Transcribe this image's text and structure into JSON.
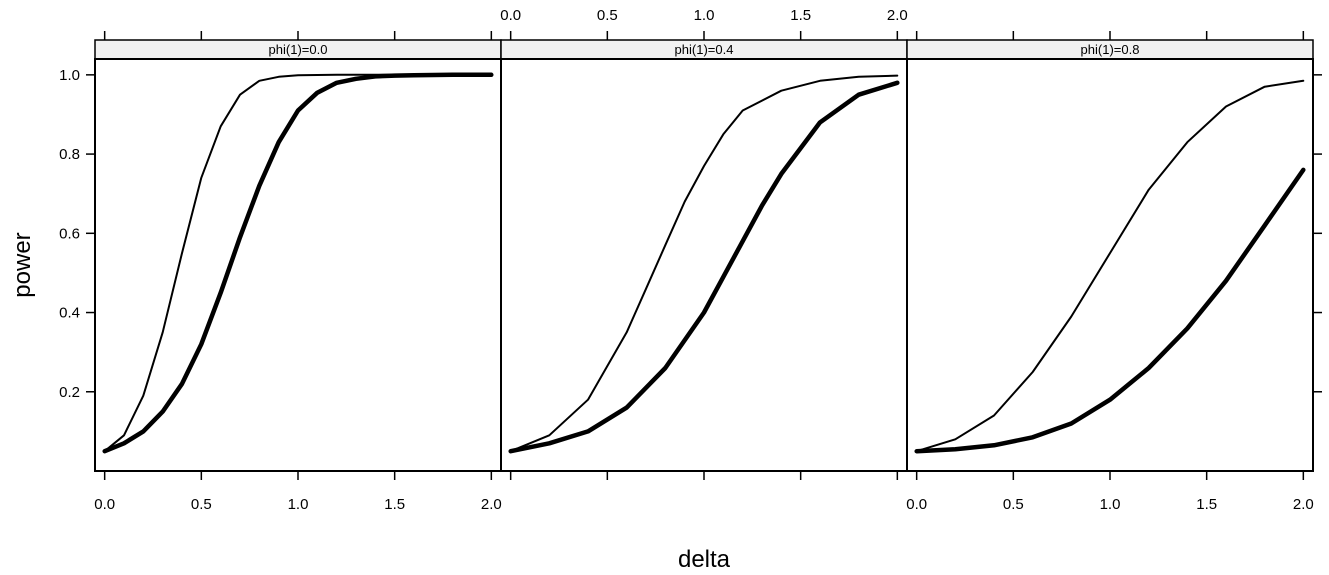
{
  "chart_data": {
    "type": "line",
    "layout": "trellis-3-panels",
    "xlabel": "delta",
    "ylabel": "power",
    "xlim": [
      -0.05,
      2.05
    ],
    "ylim": [
      0.0,
      1.04
    ],
    "x_ticks": [
      "0.0",
      "0.5",
      "1.0",
      "1.5",
      "2.0"
    ],
    "y_ticks": [
      "0.2",
      "0.4",
      "0.6",
      "0.8",
      "1.0"
    ],
    "grid": false,
    "legend": "none",
    "panels": [
      {
        "strip": "phi(1)=0.0",
        "series": [
          {
            "style": "thin",
            "x": [
              0.0,
              0.1,
              0.2,
              0.3,
              0.4,
              0.5,
              0.6,
              0.7,
              0.8,
              0.9,
              1.0,
              1.2,
              1.4,
              1.6,
              1.8,
              2.0
            ],
            "y": [
              0.05,
              0.09,
              0.19,
              0.35,
              0.55,
              0.74,
              0.87,
              0.95,
              0.985,
              0.995,
              0.999,
              1.0,
              1.0,
              1.0,
              1.0,
              1.0
            ]
          },
          {
            "style": "thick",
            "x": [
              0.0,
              0.1,
              0.2,
              0.3,
              0.4,
              0.5,
              0.6,
              0.7,
              0.8,
              0.9,
              1.0,
              1.1,
              1.2,
              1.3,
              1.4,
              1.5,
              1.6,
              1.8,
              2.0
            ],
            "y": [
              0.05,
              0.07,
              0.1,
              0.15,
              0.22,
              0.32,
              0.45,
              0.59,
              0.72,
              0.83,
              0.91,
              0.955,
              0.98,
              0.99,
              0.996,
              0.998,
              0.999,
              1.0,
              1.0
            ]
          }
        ]
      },
      {
        "strip": "phi(1)=0.4",
        "series": [
          {
            "style": "thin",
            "x": [
              0.0,
              0.2,
              0.4,
              0.6,
              0.7,
              0.8,
              0.9,
              1.0,
              1.1,
              1.2,
              1.4,
              1.6,
              1.8,
              2.0
            ],
            "y": [
              0.05,
              0.09,
              0.18,
              0.35,
              0.46,
              0.57,
              0.68,
              0.77,
              0.85,
              0.91,
              0.96,
              0.985,
              0.995,
              0.998
            ]
          },
          {
            "style": "thick",
            "x": [
              0.0,
              0.2,
              0.4,
              0.6,
              0.8,
              1.0,
              1.1,
              1.2,
              1.3,
              1.4,
              1.6,
              1.8,
              2.0
            ],
            "y": [
              0.05,
              0.07,
              0.1,
              0.16,
              0.26,
              0.4,
              0.49,
              0.58,
              0.67,
              0.75,
              0.88,
              0.95,
              0.98
            ]
          }
        ]
      },
      {
        "strip": "phi(1)=0.8",
        "series": [
          {
            "style": "thin",
            "x": [
              0.0,
              0.2,
              0.4,
              0.6,
              0.8,
              1.0,
              1.2,
              1.4,
              1.6,
              1.8,
              2.0
            ],
            "y": [
              0.05,
              0.08,
              0.14,
              0.25,
              0.39,
              0.55,
              0.71,
              0.83,
              0.92,
              0.97,
              0.985
            ]
          },
          {
            "style": "thick",
            "x": [
              0.0,
              0.2,
              0.4,
              0.6,
              0.8,
              1.0,
              1.2,
              1.4,
              1.6,
              1.8,
              2.0
            ],
            "y": [
              0.05,
              0.055,
              0.065,
              0.085,
              0.12,
              0.18,
              0.26,
              0.36,
              0.48,
              0.62,
              0.76
            ]
          }
        ]
      }
    ]
  }
}
